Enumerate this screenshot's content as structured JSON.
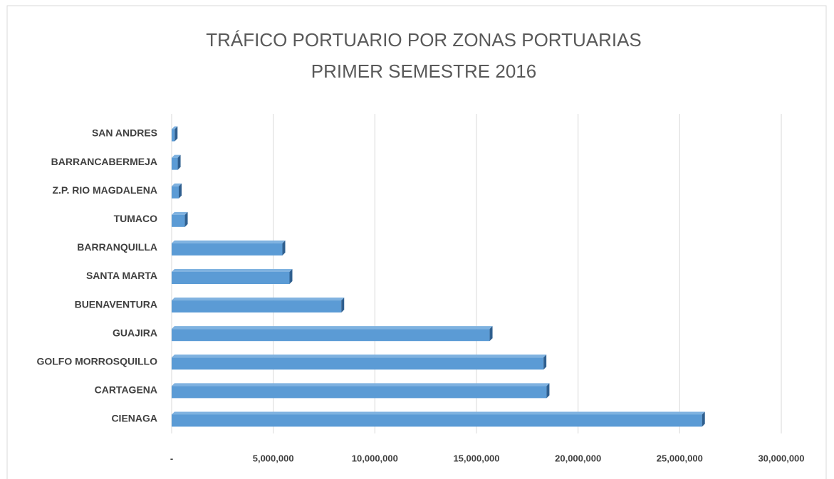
{
  "chart_data": {
    "type": "bar",
    "orientation": "horizontal",
    "title": "TRÁFICO PORTUARIO POR ZONAS PORTUARIAS",
    "subtitle": "PRIMER SEMESTRE 2016",
    "categories": [
      "SAN ANDRES",
      "BARRANCABERMEJA",
      "Z.P. RIO MAGDALENA",
      "TUMACO",
      "BARRANQUILLA",
      "SANTA MARTA",
      "BUENAVENTURA",
      "GUAJIRA",
      "GOLFO MORROSQUILLO",
      "CARTAGENA",
      "CIENAGA"
    ],
    "values": [
      150000,
      300000,
      350000,
      650000,
      5450000,
      5800000,
      8350000,
      15650000,
      18300000,
      18450000,
      26100000
    ],
    "color": "#5b9bd5",
    "xlim": [
      0,
      30000000
    ],
    "xticks": [
      {
        "value": 0,
        "label": "-"
      },
      {
        "value": 5000000,
        "label": "5,000,000"
      },
      {
        "value": 10000000,
        "label": "10,000,000"
      },
      {
        "value": 15000000,
        "label": "15,000,000"
      },
      {
        "value": 20000000,
        "label": "20,000,000"
      },
      {
        "value": 25000000,
        "label": "25,000,000"
      },
      {
        "value": 30000000,
        "label": "30,000,000"
      }
    ],
    "grid": true
  }
}
